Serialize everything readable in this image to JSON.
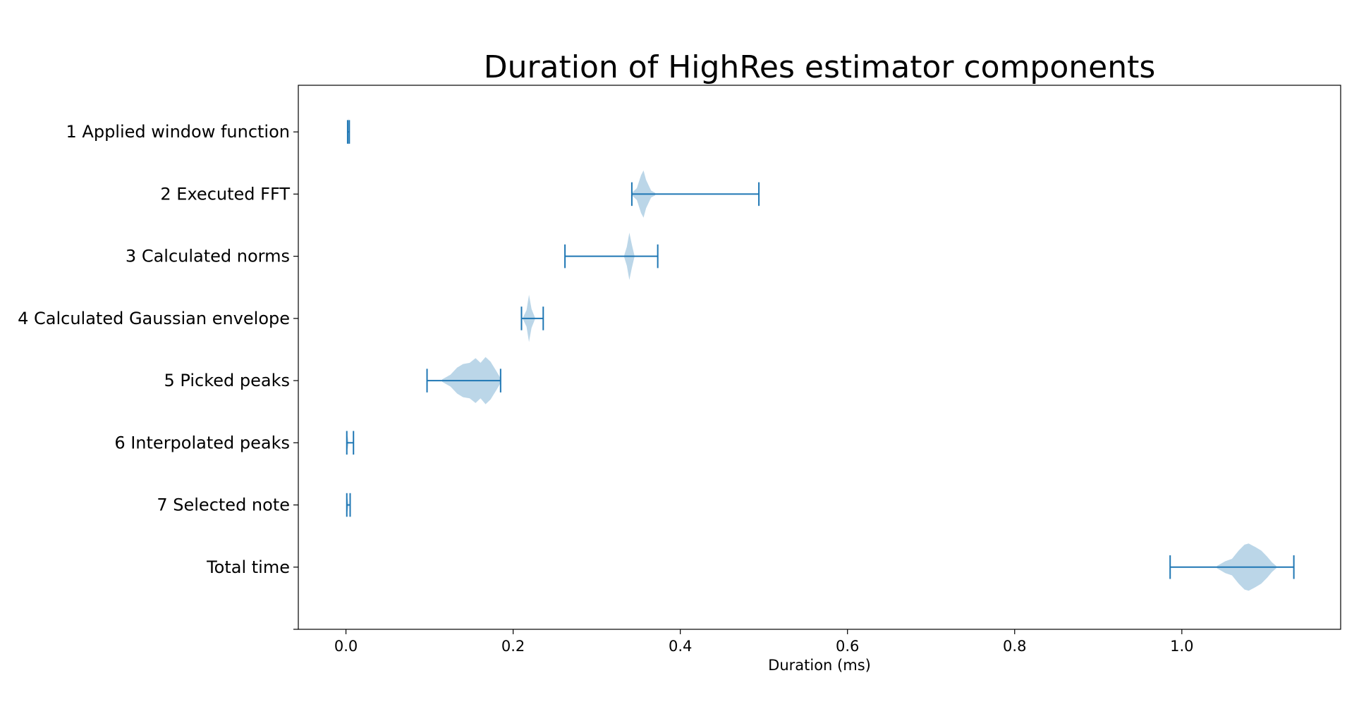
{
  "chart_data": {
    "type": "violin",
    "orientation": "horizontal",
    "title": "Duration of HighRes estimator components",
    "xlabel": "Duration (ms)",
    "ylabel": "",
    "xlim": [
      -0.057,
      1.19
    ],
    "xticks": [
      0.0,
      0.2,
      0.4,
      0.6,
      0.8,
      1.0
    ],
    "xtick_labels": [
      "0.0",
      "0.2",
      "0.4",
      "0.6",
      "0.8",
      "1.0"
    ],
    "grid": false,
    "colors": {
      "body": "#1f77b4",
      "body_alpha": 0.3,
      "whisker": "#1f77b4"
    },
    "categories": [
      "1 Applied window function",
      "2 Executed FFT",
      "3 Calculated norms",
      "4 Calculated Gaussian envelope",
      "5 Picked peaks",
      "6 Interpolated peaks",
      "7 Selected note",
      "Total time"
    ],
    "series": [
      {
        "min": 0.002,
        "max": 0.004,
        "profile": [
          [
            0.002,
            0.05
          ],
          [
            0.003,
            0.6
          ],
          [
            0.004,
            0.05
          ]
        ]
      },
      {
        "min": 0.342,
        "max": 0.494,
        "profile": [
          [
            0.342,
            0.05
          ],
          [
            0.348,
            0.25
          ],
          [
            0.353,
            0.8
          ],
          [
            0.356,
            1.0
          ],
          [
            0.359,
            0.6
          ],
          [
            0.365,
            0.15
          ],
          [
            0.37,
            0.05
          ]
        ]
      },
      {
        "min": 0.262,
        "max": 0.373,
        "profile": [
          [
            0.333,
            0.05
          ],
          [
            0.336,
            0.4
          ],
          [
            0.339,
            1.0
          ],
          [
            0.342,
            0.5
          ],
          [
            0.345,
            0.05
          ]
        ]
      },
      {
        "min": 0.21,
        "max": 0.236,
        "profile": [
          [
            0.212,
            0.05
          ],
          [
            0.216,
            0.35
          ],
          [
            0.219,
            1.0
          ],
          [
            0.222,
            0.4
          ],
          [
            0.226,
            0.05
          ]
        ]
      },
      {
        "min": 0.097,
        "max": 0.185,
        "profile": [
          [
            0.115,
            0.05
          ],
          [
            0.125,
            0.25
          ],
          [
            0.133,
            0.55
          ],
          [
            0.14,
            0.7
          ],
          [
            0.148,
            0.75
          ],
          [
            0.155,
            0.95
          ],
          [
            0.161,
            0.75
          ],
          [
            0.167,
            1.0
          ],
          [
            0.173,
            0.8
          ],
          [
            0.18,
            0.4
          ],
          [
            0.185,
            0.1
          ]
        ]
      },
      {
        "min": 0.001,
        "max": 0.009,
        "profile": [
          [
            0.001,
            0.05
          ],
          [
            0.002,
            0.3
          ],
          [
            0.003,
            0.05
          ]
        ]
      },
      {
        "min": 0.001,
        "max": 0.005,
        "profile": [
          [
            0.001,
            0.05
          ],
          [
            0.002,
            0.3
          ],
          [
            0.003,
            0.05
          ]
        ]
      },
      {
        "min": 0.986,
        "max": 1.134,
        "profile": [
          [
            1.042,
            0.05
          ],
          [
            1.052,
            0.25
          ],
          [
            1.06,
            0.35
          ],
          [
            1.068,
            0.7
          ],
          [
            1.075,
            0.95
          ],
          [
            1.08,
            1.0
          ],
          [
            1.088,
            0.85
          ],
          [
            1.095,
            0.7
          ],
          [
            1.102,
            0.45
          ],
          [
            1.108,
            0.2
          ],
          [
            1.113,
            0.05
          ]
        ]
      }
    ]
  }
}
